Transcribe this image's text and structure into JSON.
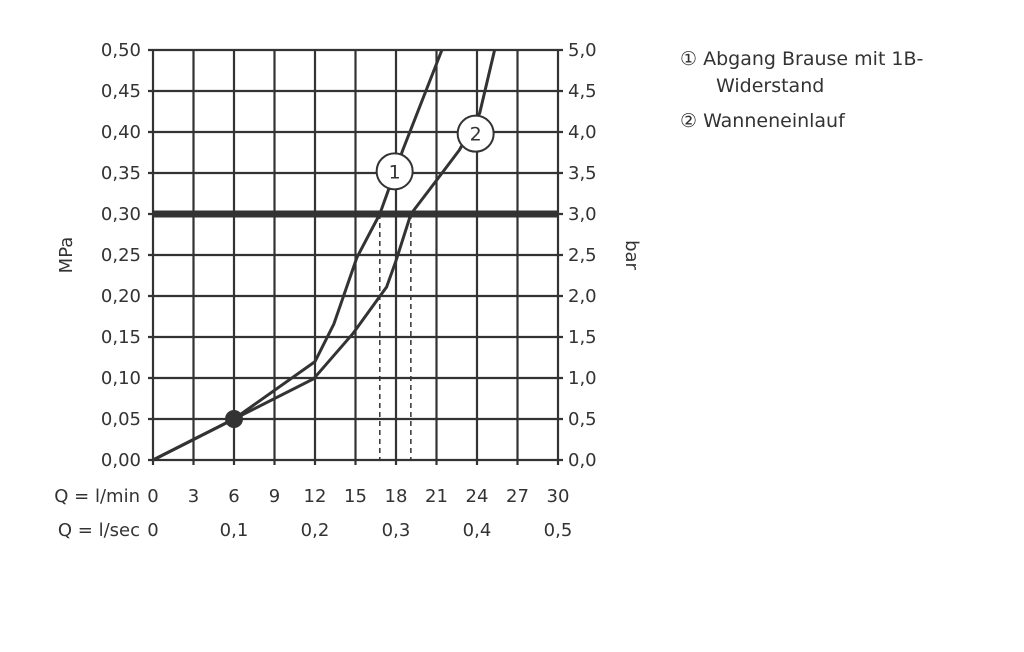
{
  "chart_data": {
    "type": "line",
    "x": {
      "label": "Q = l/min",
      "range": [
        0,
        30
      ],
      "ticks": [
        0,
        3,
        6,
        9,
        12,
        15,
        18,
        21,
        24,
        27,
        30
      ]
    },
    "x2": {
      "label": "Q = l/sec",
      "ticks": [
        "0",
        "0,1",
        "0,2",
        "0,3",
        "0,4",
        "0,5"
      ],
      "tick_values_lmin": [
        0,
        6,
        12,
        18,
        24,
        30
      ]
    },
    "y_left": {
      "label": "MPa",
      "range": [
        0,
        0.5
      ],
      "ticks": [
        "0,00",
        "0,05",
        "0,10",
        "0,15",
        "0,20",
        "0,25",
        "0,30",
        "0,35",
        "0,40",
        "0,45",
        "0,50"
      ]
    },
    "y_right": {
      "label": "bar",
      "ticks": [
        "0,0",
        "0,5",
        "1,0",
        "1,5",
        "2,0",
        "2,5",
        "3,0",
        "3,5",
        "4,0",
        "4,5",
        "5,0"
      ]
    },
    "grid": true,
    "reference_line_mpa": 0.3,
    "marker_point": [
      6,
      0.05
    ],
    "series": [
      {
        "name": "1",
        "points": [
          [
            0,
            0
          ],
          [
            6,
            0.05
          ],
          [
            12,
            0.12
          ],
          [
            13.4,
            0.166
          ],
          [
            15.1,
            0.247
          ],
          [
            16.8,
            0.3
          ],
          [
            18.5,
            0.378
          ],
          [
            21.4,
            0.5
          ]
        ],
        "label_at": [
          17.9,
          0.352
        ],
        "drop_x": 16.8
      },
      {
        "name": "2",
        "points": [
          [
            0,
            0
          ],
          [
            6,
            0.05
          ],
          [
            11.9,
            0.099
          ],
          [
            14.8,
            0.154
          ],
          [
            17.3,
            0.211
          ],
          [
            18,
            0.243
          ],
          [
            19.1,
            0.3
          ],
          [
            21,
            0.341
          ],
          [
            22.7,
            0.378
          ],
          [
            24.2,
            0.423
          ],
          [
            25.3,
            0.5
          ]
        ],
        "label_at": [
          23.9,
          0.398
        ],
        "drop_x": 19.1
      }
    ],
    "legend": [
      {
        "marker": "①",
        "text": "Abgang Brause mit 1B-",
        "text2": "Widerstand"
      },
      {
        "marker": "②",
        "text": "Wanneneinlauf"
      }
    ],
    "color": "#333333"
  }
}
